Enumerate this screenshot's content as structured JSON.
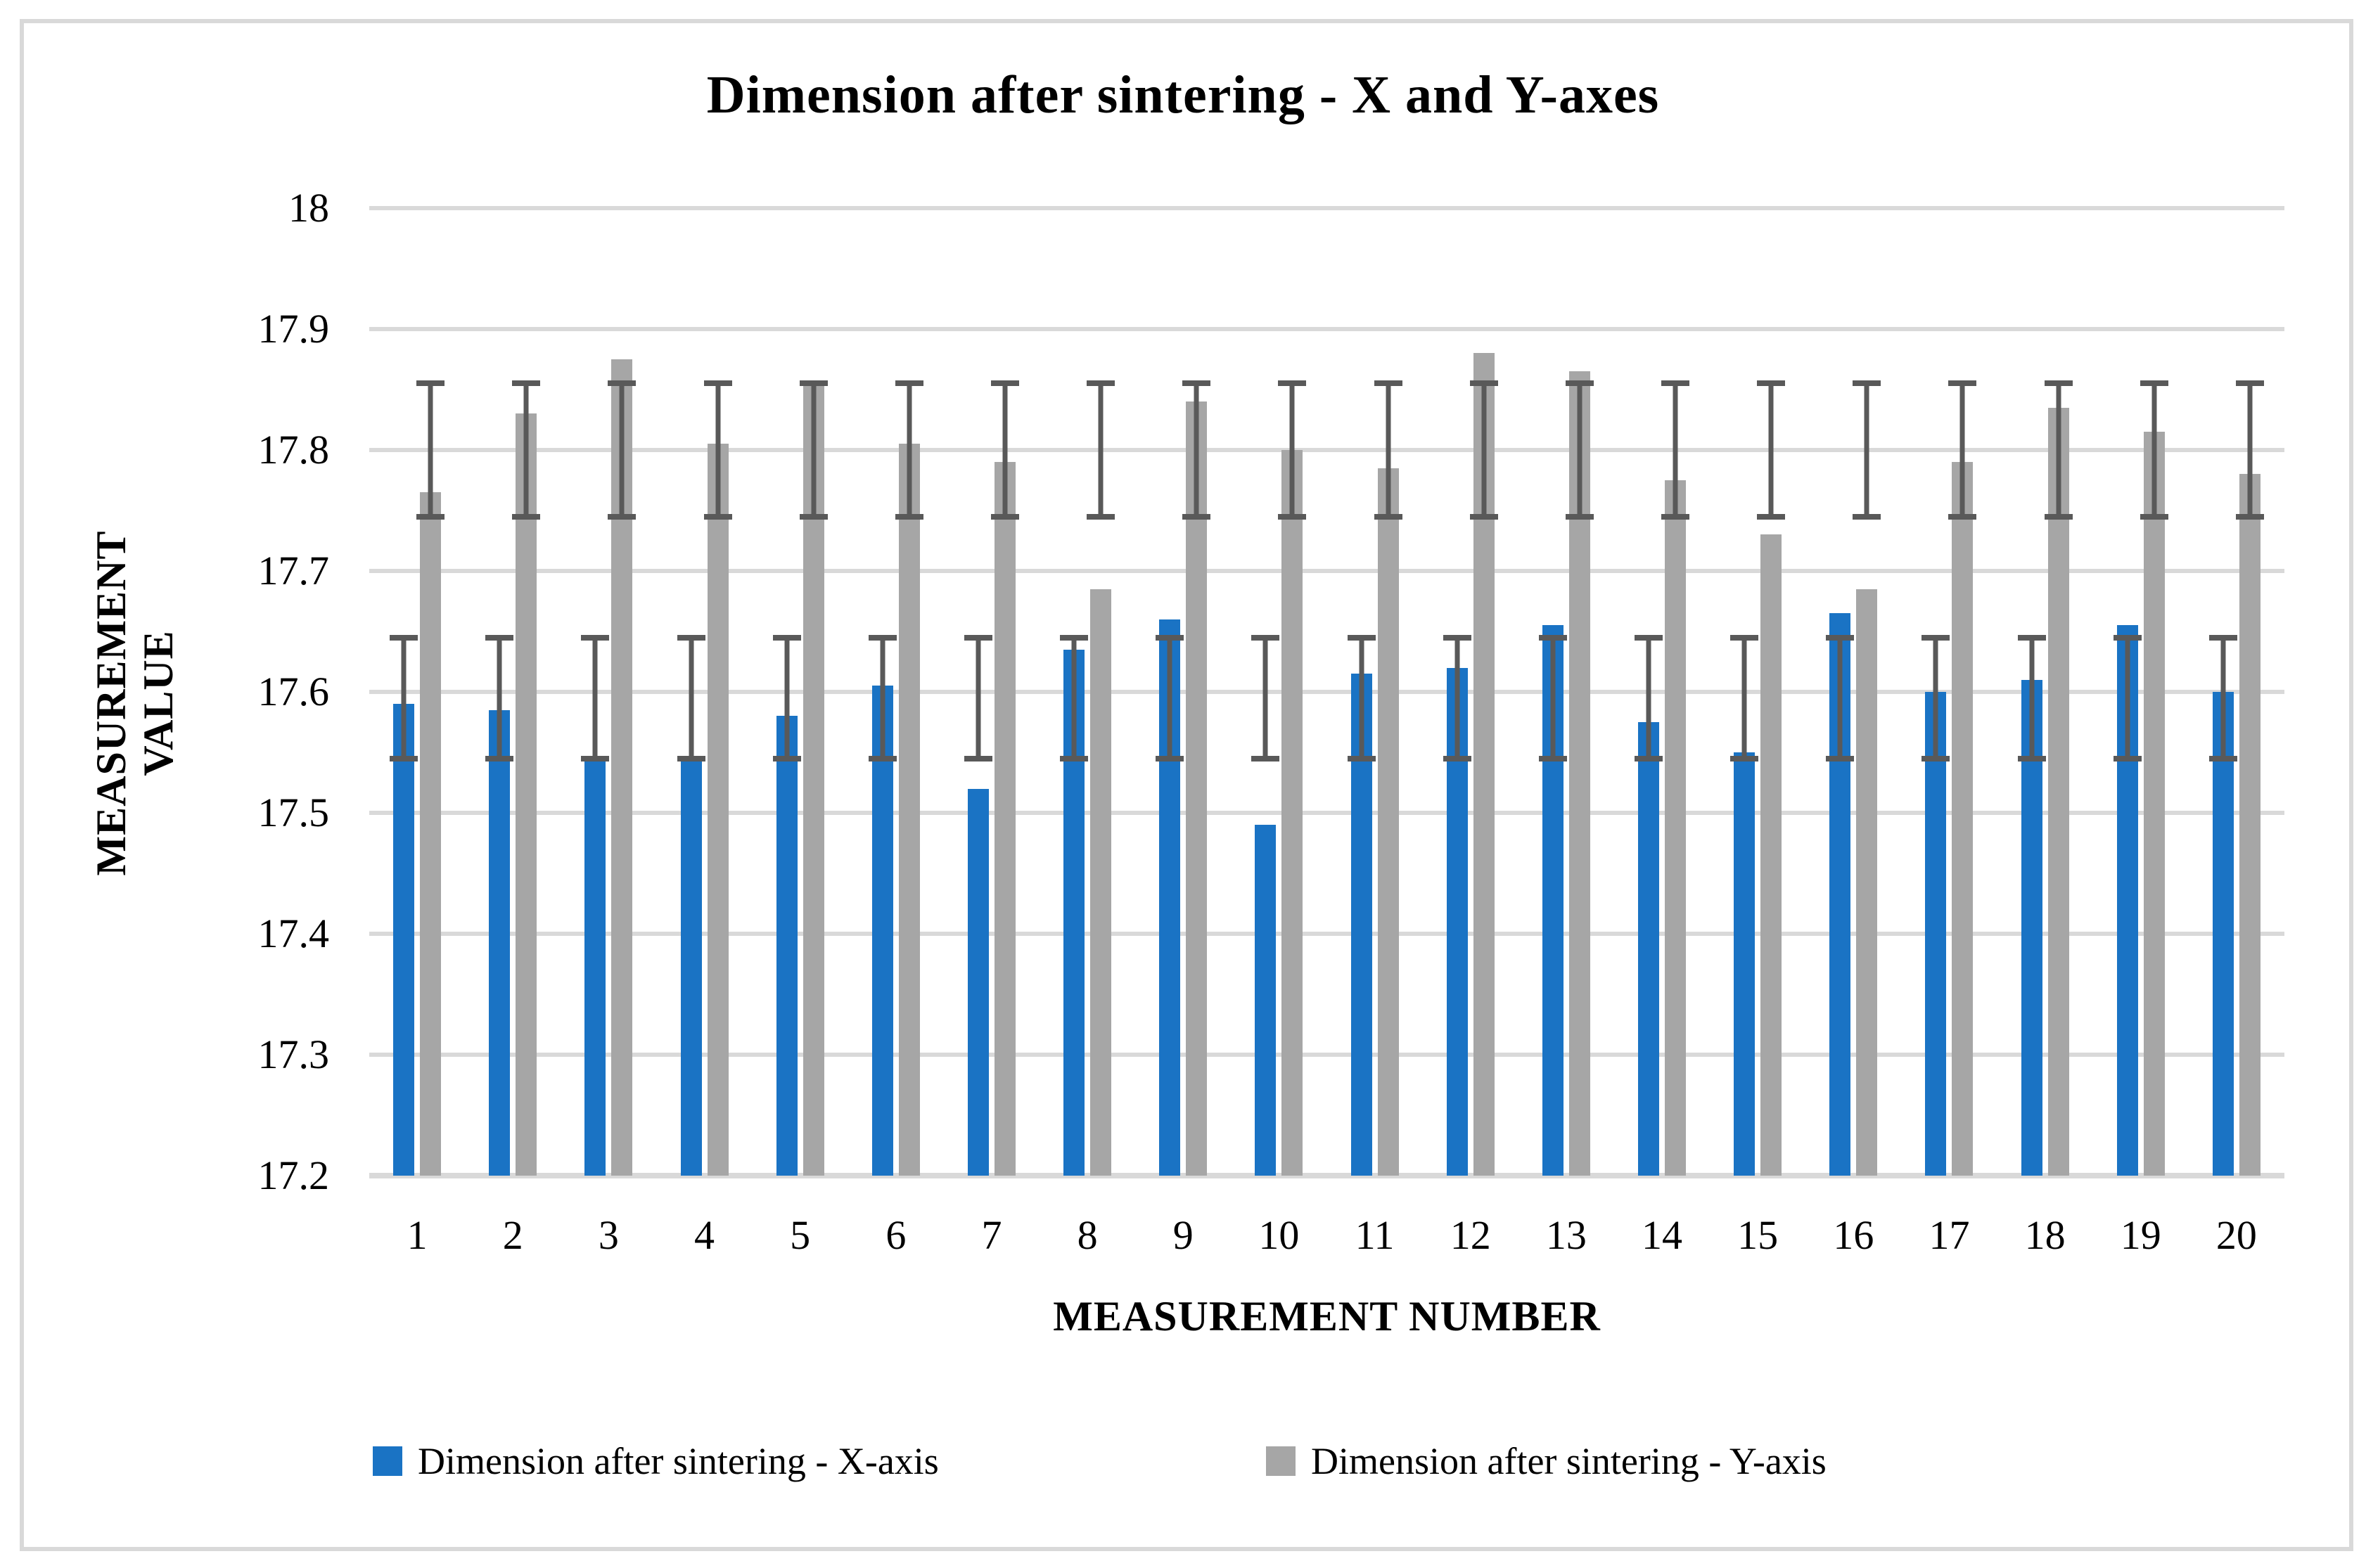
{
  "title": "Dimension after sintering - X and Y-axes",
  "y_axis": {
    "title_line1": "MEASUREMENT",
    "title_line2": "VALUE",
    "tick_labels": [
      "18",
      "17.9",
      "17.8",
      "17.7",
      "17.6",
      "17.5",
      "17.4",
      "17.3",
      "17.2"
    ],
    "tick_values": [
      18,
      17.9,
      17.8,
      17.7,
      17.6,
      17.5,
      17.4,
      17.3,
      17.2
    ]
  },
  "x_axis": {
    "title": "MEASUREMENT NUMBER",
    "labels": [
      "1",
      "2",
      "3",
      "4",
      "5",
      "6",
      "7",
      "8",
      "9",
      "10",
      "11",
      "12",
      "13",
      "14",
      "15",
      "16",
      "17",
      "18",
      "19",
      "20"
    ]
  },
  "legend": {
    "items": [
      {
        "label": "Dimension after sintering - X-axis",
        "color": "#1A73C4"
      },
      {
        "label": "Dimension after sintering - Y-axis",
        "color": "#A6A6A6"
      }
    ]
  },
  "colors": {
    "x_series": "#1A73C4",
    "y_series": "#A6A6A6",
    "error_bar": "#595959",
    "gridline": "#D9D9D9",
    "border": "#D9D9D9"
  },
  "chart_data": {
    "type": "bar",
    "title": "Dimension after sintering - X and Y-axes",
    "xlabel": "MEASUREMENT NUMBER",
    "ylabel": "MEASUREMENT VALUE",
    "ylim": [
      17.2,
      18
    ],
    "ytick_step": 0.1,
    "grid": true,
    "legend_position": "bottom",
    "categories": [
      1,
      2,
      3,
      4,
      5,
      6,
      7,
      8,
      9,
      10,
      11,
      12,
      13,
      14,
      15,
      16,
      17,
      18,
      19,
      20
    ],
    "series": [
      {
        "name": "Dimension after sintering - X-axis",
        "color": "#1A73C4",
        "values": [
          17.59,
          17.585,
          17.545,
          17.545,
          17.58,
          17.605,
          17.52,
          17.635,
          17.66,
          17.49,
          17.615,
          17.62,
          17.655,
          17.575,
          17.55,
          17.665,
          17.6,
          17.61,
          17.655,
          17.6
        ],
        "error_band": {
          "low": 17.545,
          "high": 17.645,
          "note": "constant error bar drawn on every bar"
        }
      },
      {
        "name": "Dimension after sintering - Y-axis",
        "color": "#A6A6A6",
        "values": [
          17.765,
          17.83,
          17.875,
          17.805,
          17.855,
          17.805,
          17.79,
          17.685,
          17.84,
          17.8,
          17.785,
          17.88,
          17.865,
          17.775,
          17.73,
          17.685,
          17.79,
          17.835,
          17.815,
          17.78
        ],
        "error_band": {
          "low": 17.745,
          "high": 17.855,
          "note": "constant error bar drawn on every bar"
        }
      }
    ]
  }
}
